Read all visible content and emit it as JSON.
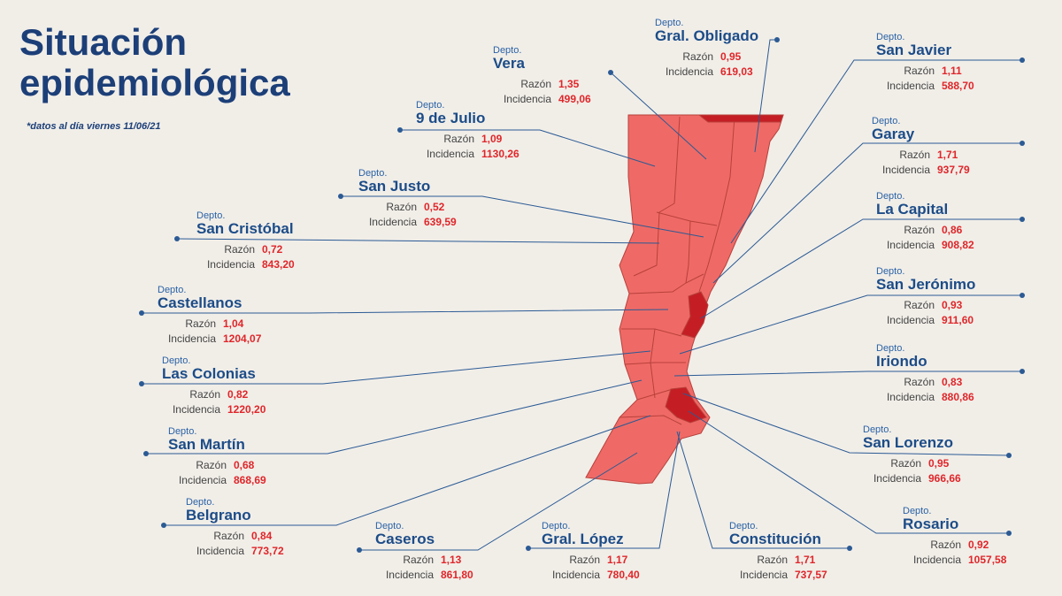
{
  "header": {
    "title": [
      "Situación",
      "epidemiológica"
    ],
    "note": "*datos al día viernes 11/06/21"
  },
  "departments": [
    {
      "depto": "Depto.",
      "name": "Gral. Obligado",
      "razon_label": "Razón",
      "razon": "0,95",
      "incidencia_label": "Incidencia",
      "incidencia": "619,03"
    },
    {
      "depto": "Depto.",
      "name": "Vera",
      "razon_label": "Razón",
      "razon": "1,35",
      "incidencia_label": "Incidencia",
      "incidencia": "499,06"
    },
    {
      "depto": "Depto.",
      "name": "9 de Julio",
      "razon_label": "Razón",
      "razon": "1,09",
      "incidencia_label": "Incidencia",
      "incidencia": "1130,26"
    },
    {
      "depto": "Depto.",
      "name": "San Justo",
      "razon_label": "Razón",
      "razon": "0,52",
      "incidencia_label": "Incidencia",
      "incidencia": "639,59"
    },
    {
      "depto": "Depto.",
      "name": "San Cristóbal",
      "razon_label": "Razón",
      "razon": "0,72",
      "incidencia_label": "Incidencia",
      "incidencia": "843,20"
    },
    {
      "depto": "Depto.",
      "name": "Castellanos",
      "razon_label": "Razón",
      "razon": "1,04",
      "incidencia_label": "Incidencia",
      "incidencia": "1204,07"
    },
    {
      "depto": "Depto.",
      "name": "Las Colonias",
      "razon_label": "Razón",
      "razon": "0,82",
      "incidencia_label": "Incidencia",
      "incidencia": "1220,20"
    },
    {
      "depto": "Depto.",
      "name": "San Martín",
      "razon_label": "Razón",
      "razon": "0,68",
      "incidencia_label": "Incidencia",
      "incidencia": "868,69"
    },
    {
      "depto": "Depto.",
      "name": "Belgrano",
      "razon_label": "Razón",
      "razon": "0,84",
      "incidencia_label": "Incidencia",
      "incidencia": "773,72"
    },
    {
      "depto": "Depto.",
      "name": "Caseros",
      "razon_label": "Razón",
      "razon": "1,13",
      "incidencia_label": "Incidencia",
      "incidencia": "861,80"
    },
    {
      "depto": "Depto.",
      "name": "Gral. López",
      "razon_label": "Razón",
      "razon": "1,17",
      "incidencia_label": "Incidencia",
      "incidencia": "780,40"
    },
    {
      "depto": "Depto.",
      "name": "Constitución",
      "razon_label": "Razón",
      "razon": "1,71",
      "incidencia_label": "Incidencia",
      "incidencia": "737,57"
    },
    {
      "depto": "Depto.",
      "name": "Rosario",
      "razon_label": "Razón",
      "razon": "0,92",
      "incidencia_label": "Incidencia",
      "incidencia": "1057,58"
    },
    {
      "depto": "Depto.",
      "name": "San Lorenzo",
      "razon_label": "Razón",
      "razon": "0,95",
      "incidencia_label": "Incidencia",
      "incidencia": "966,66"
    },
    {
      "depto": "Depto.",
      "name": "Iriondo",
      "razon_label": "Razón",
      "razon": "0,83",
      "incidencia_label": "Incidencia",
      "incidencia": "880,86"
    },
    {
      "depto": "Depto.",
      "name": "San Jerónimo",
      "razon_label": "Razón",
      "razon": "0,93",
      "incidencia_label": "Incidencia",
      "incidencia": "911,60"
    },
    {
      "depto": "Depto.",
      "name": "La Capital",
      "razon_label": "Razón",
      "razon": "0,86",
      "incidencia_label": "Incidencia",
      "incidencia": "908,82"
    },
    {
      "depto": "Depto.",
      "name": "Garay",
      "razon_label": "Razón",
      "razon": "1,71",
      "incidencia_label": "Incidencia",
      "incidencia": "937,79"
    },
    {
      "depto": "Depto.",
      "name": "San Javier",
      "razon_label": "Razón",
      "razon": "1,11",
      "incidencia_label": "Incidencia",
      "incidencia": "588,70"
    }
  ]
}
